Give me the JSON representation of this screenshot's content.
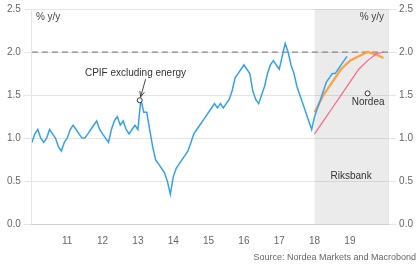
{
  "chart_data": {
    "type": "line",
    "ylabel": "% y/y",
    "y2label": "% y/y",
    "source": "Source: Nordea Markets and Macrobond",
    "xlim": [
      10.0,
      20.08
    ],
    "xticks": [
      11,
      12,
      13,
      14,
      15,
      16,
      17,
      18,
      19
    ],
    "ylim": [
      0.0,
      2.5
    ],
    "yticks": [
      {
        "value": 0.0,
        "label": "0.0"
      },
      0.5,
      {
        "value": 1.0,
        "label": "1.0"
      },
      1.5,
      {
        "value": 2.0,
        "label": "2.0"
      },
      2.5
    ],
    "y2lim": [
      0.0,
      2.5
    ],
    "y2ticks": [
      {
        "value": 0.0,
        "label": "0.0"
      },
      0.5,
      {
        "value": 1.0,
        "label": "1.0"
      },
      1.5,
      {
        "value": 2.0,
        "label": "2.0"
      },
      2.5
    ],
    "grid": true,
    "forecast_start": 18.0,
    "reference_line": 2.0,
    "series": [
      {
        "name": "CPIF excluding energy",
        "x": [
          10.0,
          10.083,
          10.167,
          10.25,
          10.333,
          10.417,
          10.5,
          10.583,
          10.667,
          10.75,
          10.833,
          10.917,
          11.0,
          11.083,
          11.167,
          11.25,
          11.333,
          11.417,
          11.5,
          11.583,
          11.667,
          11.75,
          11.833,
          11.917,
          12.0,
          12.083,
          12.167,
          12.25,
          12.333,
          12.417,
          12.5,
          12.583,
          12.667,
          12.75,
          12.833,
          12.917,
          13.0,
          13.083,
          13.167,
          13.25,
          13.333,
          13.417,
          13.5,
          13.583,
          13.667,
          13.75,
          13.833,
          13.917,
          14.0,
          14.083,
          14.167,
          14.25,
          14.333,
          14.417,
          14.5,
          14.583,
          14.667,
          14.75,
          14.833,
          14.917,
          15.0,
          15.083,
          15.167,
          15.25,
          15.333,
          15.417,
          15.5,
          15.583,
          15.667,
          15.75,
          15.833,
          15.917,
          16.0,
          16.083,
          16.167,
          16.25,
          16.333,
          16.417,
          16.5,
          16.583,
          16.667,
          16.75,
          16.833,
          16.917,
          17.0,
          17.083,
          17.167,
          17.25,
          17.333,
          17.417,
          17.5,
          17.583,
          17.667,
          17.75,
          17.833,
          17.917,
          18.0,
          18.083,
          18.167,
          18.25,
          18.333,
          18.417,
          18.5,
          18.583,
          18.667,
          18.75,
          18.833,
          18.917
        ],
        "values": [
          0.95,
          1.05,
          1.1,
          1.0,
          0.95,
          1.0,
          1.1,
          1.05,
          1.0,
          0.9,
          0.85,
          0.95,
          1.0,
          1.1,
          1.15,
          1.1,
          1.05,
          1.0,
          1.0,
          1.05,
          1.1,
          1.15,
          1.2,
          1.1,
          1.05,
          1.0,
          0.95,
          1.1,
          1.2,
          1.25,
          1.15,
          1.2,
          1.1,
          1.05,
          1.1,
          1.15,
          1.1,
          1.45,
          1.3,
          1.3,
          1.1,
          0.9,
          0.75,
          0.7,
          0.65,
          0.6,
          0.5,
          0.35,
          0.55,
          0.65,
          0.7,
          0.75,
          0.8,
          0.85,
          0.95,
          1.05,
          1.1,
          1.15,
          1.2,
          1.25,
          1.3,
          1.35,
          1.4,
          1.35,
          1.4,
          1.35,
          1.4,
          1.45,
          1.55,
          1.7,
          1.75,
          1.8,
          1.85,
          1.8,
          1.75,
          1.55,
          1.45,
          1.4,
          1.5,
          1.6,
          1.75,
          1.85,
          1.9,
          1.85,
          1.8,
          1.95,
          2.1,
          2.0,
          1.85,
          1.75,
          1.6,
          1.5,
          1.4,
          1.3,
          1.2,
          1.1,
          1.25,
          1.35,
          1.45,
          1.55,
          1.65,
          1.7,
          1.75,
          1.75,
          1.8,
          1.85,
          1.9,
          1.95
        ]
      },
      {
        "name": "Riksbank",
        "x": [
          18.0,
          18.25,
          18.5,
          18.75,
          19.0,
          19.25,
          19.5,
          19.75,
          19.95
        ],
        "values": [
          1.05,
          1.2,
          1.35,
          1.5,
          1.65,
          1.8,
          1.9,
          1.98,
          2.0
        ]
      },
      {
        "name": "Nordea",
        "x": [
          18.0,
          18.25,
          18.5,
          18.75,
          19.0,
          19.25,
          19.5,
          19.75,
          19.95
        ],
        "values": [
          1.3,
          1.5,
          1.65,
          1.8,
          1.9,
          1.95,
          2.0,
          1.97,
          1.93
        ]
      }
    ],
    "annotations": [
      {
        "text": "CPIF excluding energy",
        "x": 11.5,
        "y": 1.72,
        "point": [
          13.05,
          1.44
        ],
        "arrow": true
      },
      {
        "text": "Riksbank",
        "x": 18.45,
        "y": 0.52
      },
      {
        "text": "Nordea",
        "x": 19.05,
        "y": 1.38,
        "point": [
          19.5,
          1.52
        ]
      }
    ]
  }
}
